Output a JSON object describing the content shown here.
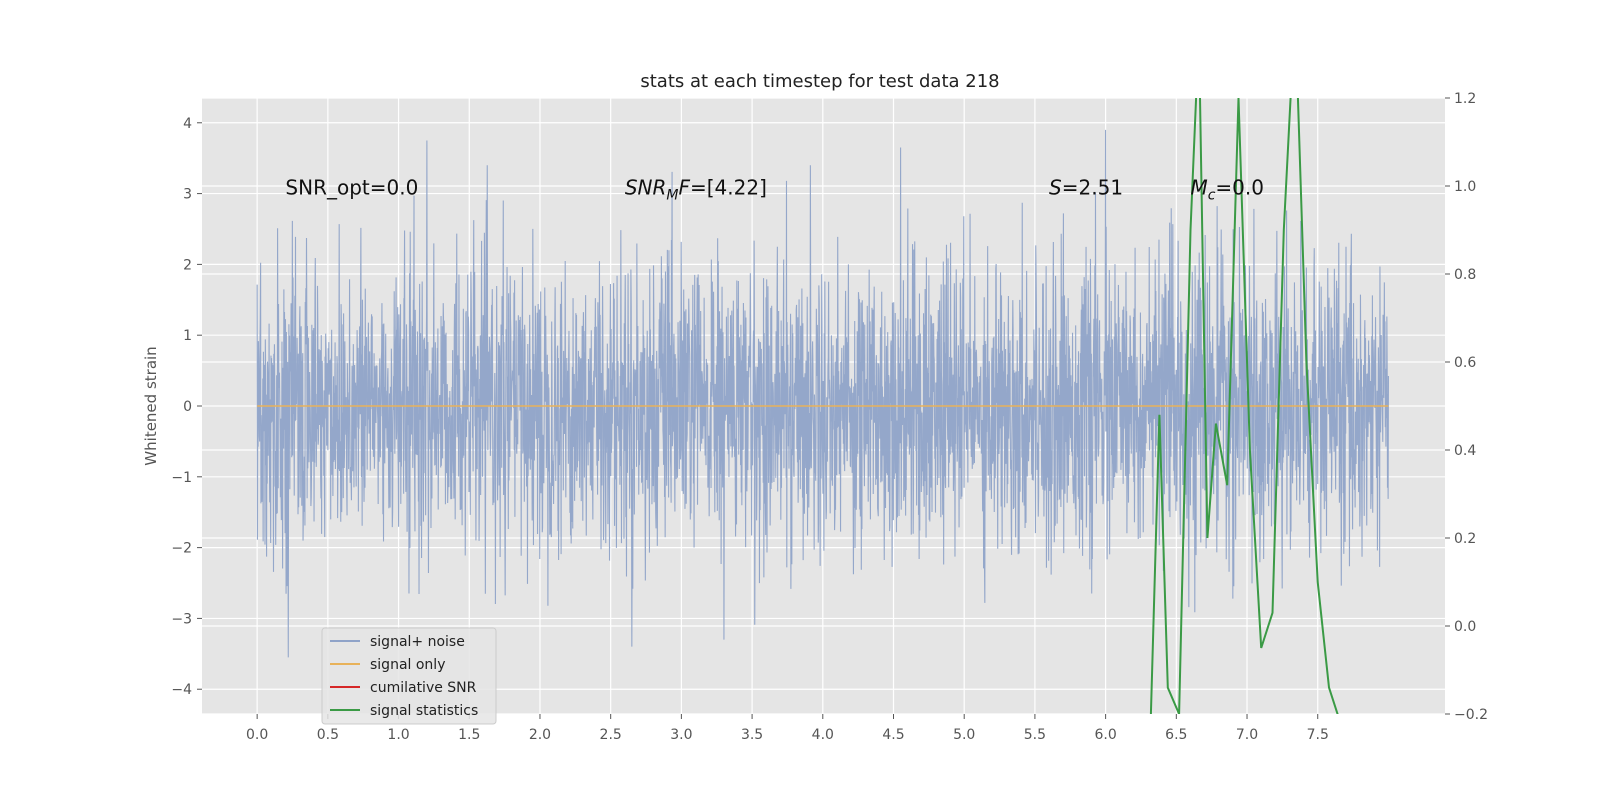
{
  "chart_data": {
    "type": "line",
    "title": "stats at each timestep for test data 218",
    "ylabel": "Whitened strain",
    "xlabel": "",
    "xlim": [
      -0.39,
      8.4
    ],
    "ylim": [
      -4.35,
      4.35
    ],
    "ylim_right": [
      -0.2,
      1.2
    ],
    "xticks": [
      "0.0",
      "0.5",
      "1.0",
      "1.5",
      "2.0",
      "2.5",
      "3.0",
      "3.5",
      "4.0",
      "4.5",
      "5.0",
      "5.5",
      "6.0",
      "6.5",
      "7.0",
      "7.5"
    ],
    "xtick_values": [
      0,
      0.5,
      1,
      1.5,
      2,
      2.5,
      3,
      3.5,
      4,
      4.5,
      5,
      5.5,
      6,
      6.5,
      7,
      7.5
    ],
    "yticks_left": [
      "4",
      "3",
      "2",
      "1",
      "0",
      "−1",
      "−2",
      "−3",
      "−4"
    ],
    "ytick_values_left": [
      4,
      3,
      2,
      1,
      0,
      -1,
      -2,
      -3,
      -4
    ],
    "yticks_right": [
      "1.2",
      "1.0",
      "0.8",
      "0.6",
      "0.4",
      "0.2",
      "0.0",
      "−0.2"
    ],
    "ytick_values_right": [
      1.2,
      1.0,
      0.8,
      0.6,
      0.4,
      0.2,
      0.0,
      -0.2
    ],
    "grid": true,
    "legend_position": "lower-left",
    "annotations": [
      {
        "text": "SNR_opt=0.0",
        "x": 0.2,
        "y": 3.1
      },
      {
        "text": "SNR_MF=[4.22]",
        "x": 2.6,
        "y": 3.1
      },
      {
        "text": "S=2.51",
        "x": 5.6,
        "y": 3.1
      },
      {
        "text": "M_c=0.0",
        "x": 6.6,
        "y": 3.1
      }
    ],
    "series": [
      {
        "name": "signal+ noise",
        "color": "#8fa3c8",
        "axis": "left",
        "kind": "noise",
        "x_range": [
          0.0,
          8.0
        ],
        "amplitude_std": 1.0,
        "extremes": [
          [
            0.22,
            -3.55
          ],
          [
            1.2,
            3.75
          ],
          [
            4.55,
            3.65
          ],
          [
            6.0,
            3.9
          ],
          [
            3.3,
            -3.3
          ]
        ]
      },
      {
        "name": "signal only",
        "color": "#e8b25a",
        "axis": "left",
        "x": [
          0.0,
          8.0
        ],
        "y": [
          0.0,
          0.0
        ]
      },
      {
        "name": "cumilative SNR",
        "color": "#d62728",
        "axis": "right",
        "x": [],
        "y": []
      },
      {
        "name": "signal statistics",
        "color": "#3a9a45",
        "axis": "right",
        "x": [
          6.32,
          6.38,
          6.44,
          6.52,
          6.6,
          6.66,
          6.72,
          6.78,
          6.86,
          6.94,
          7.02,
          7.1,
          7.18,
          7.26,
          7.34,
          7.42,
          7.5,
          7.58,
          7.66
        ],
        "y": [
          -0.2,
          0.48,
          -0.14,
          -0.2,
          0.9,
          1.35,
          0.2,
          0.46,
          0.32,
          1.2,
          0.4,
          -0.05,
          0.03,
          0.9,
          1.4,
          0.6,
          0.1,
          -0.14,
          -0.22
        ]
      }
    ]
  }
}
